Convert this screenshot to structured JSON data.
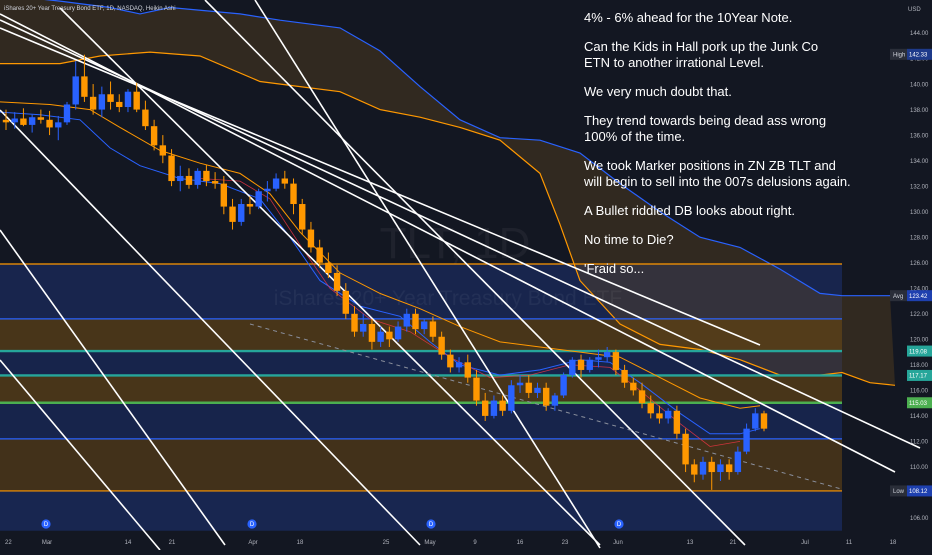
{
  "header": {
    "instrument": "iShares 20+ Year Treasury Bond ETF, 1D, NASDAQ, Heikin Ashi"
  },
  "watermark": {
    "symbol": "TLT, 1D",
    "name": "iShares 20+ Year Treasury Bond ETF"
  },
  "note": {
    "lines": [
      "4% - 6% ahead for the 10Year Note.",
      "Can the Kids in Hall pork up the Junk Co\nETN to another irrational Level.",
      "We very much doubt that.",
      "They trend towards being dead ass wrong\n100% of the time.",
      "We took Marker positions in ZN ZB TLT and\nwill begin to sell into the 007s delusions again.",
      "A Bullet riddled DB looks about right.",
      "No time to Die?",
      "'Fraid so..."
    ]
  },
  "colors": {
    "background": "#131722",
    "bull": "#2962ff",
    "bear": "#ff9800",
    "hline_orange": "#ff9800",
    "hline_teal": "#26a69a",
    "hline_green": "#4caf50",
    "hline_blue": "#2962ff",
    "cloud_top": "#2962ff",
    "cloud_bottom": "#ff9800",
    "trend_lines": "#ffffff",
    "axis_text": "#b2b5be",
    "marker_fill": "#2962ff"
  },
  "chart_data": {
    "type": "candlestick",
    "style": "Heikin Ashi",
    "currency": "USD",
    "ylim": [
      105,
      145.5
    ],
    "y_ticks": [
      106,
      108,
      110,
      112,
      114,
      116,
      118,
      120,
      122,
      124,
      126,
      128,
      130,
      132,
      134,
      136,
      138,
      140,
      142,
      144
    ],
    "x_ticks": [
      "22",
      "Mar",
      "14",
      "21",
      "Apr",
      "18",
      "25",
      "May",
      "9",
      "16",
      "23",
      "Jun",
      "13",
      "21",
      "Jul",
      "11",
      "18"
    ],
    "price_labels": [
      {
        "label": "High",
        "value": "142.33"
      },
      {
        "label": "",
        "value": "119.08"
      },
      {
        "label": "",
        "value": "117.17"
      },
      {
        "label": "",
        "value": "115.03"
      },
      {
        "label": "Avg",
        "value": "123.42"
      },
      {
        "label": "Low",
        "value": "108.12"
      }
    ],
    "horizontal_levels": [
      {
        "value": 125.9,
        "color": "orange"
      },
      {
        "value": 121.6,
        "color": "blue"
      },
      {
        "value": 119.08,
        "color": "teal"
      },
      {
        "value": 117.17,
        "color": "teal"
      },
      {
        "value": 115.03,
        "color": "green"
      },
      {
        "value": 112.2,
        "color": "blue"
      },
      {
        "value": 108.12,
        "color": "orange"
      }
    ],
    "dividend_markers": [
      "D",
      "D",
      "D",
      "D"
    ],
    "candles": [
      {
        "o": 137.2,
        "h": 138.0,
        "l": 136.4,
        "c": 137.0
      },
      {
        "o": 137.0,
        "h": 137.8,
        "l": 136.5,
        "c": 137.3
      },
      {
        "o": 137.3,
        "h": 138.1,
        "l": 136.7,
        "c": 136.8
      },
      {
        "o": 136.8,
        "h": 137.6,
        "l": 136.2,
        "c": 137.4
      },
      {
        "o": 137.4,
        "h": 138.0,
        "l": 136.9,
        "c": 137.2
      },
      {
        "o": 137.2,
        "h": 137.9,
        "l": 136.0,
        "c": 136.6
      },
      {
        "o": 136.6,
        "h": 137.5,
        "l": 135.6,
        "c": 137.0
      },
      {
        "o": 137.0,
        "h": 138.6,
        "l": 136.8,
        "c": 138.4
      },
      {
        "o": 138.4,
        "h": 141.8,
        "l": 138.0,
        "c": 140.6
      },
      {
        "o": 140.6,
        "h": 142.3,
        "l": 138.6,
        "c": 139.0
      },
      {
        "o": 139.0,
        "h": 140.0,
        "l": 137.6,
        "c": 138.0
      },
      {
        "o": 138.0,
        "h": 139.8,
        "l": 137.4,
        "c": 139.2
      },
      {
        "o": 139.2,
        "h": 140.2,
        "l": 138.0,
        "c": 138.6
      },
      {
        "o": 138.6,
        "h": 139.2,
        "l": 137.8,
        "c": 138.2
      },
      {
        "o": 138.2,
        "h": 139.6,
        "l": 137.8,
        "c": 139.4
      },
      {
        "o": 139.4,
        "h": 140.1,
        "l": 137.8,
        "c": 138.0
      },
      {
        "o": 138.0,
        "h": 138.7,
        "l": 136.4,
        "c": 136.7
      },
      {
        "o": 136.7,
        "h": 137.2,
        "l": 134.8,
        "c": 135.2
      },
      {
        "o": 135.2,
        "h": 136.0,
        "l": 133.8,
        "c": 134.4
      },
      {
        "o": 134.4,
        "h": 134.9,
        "l": 132.0,
        "c": 132.4
      },
      {
        "o": 132.4,
        "h": 133.6,
        "l": 131.6,
        "c": 132.8
      },
      {
        "o": 132.8,
        "h": 133.4,
        "l": 131.8,
        "c": 132.1
      },
      {
        "o": 132.1,
        "h": 133.4,
        "l": 131.8,
        "c": 133.2
      },
      {
        "o": 133.2,
        "h": 133.7,
        "l": 132.0,
        "c": 132.4
      },
      {
        "o": 132.4,
        "h": 133.1,
        "l": 131.8,
        "c": 132.2
      },
      {
        "o": 132.2,
        "h": 132.8,
        "l": 129.8,
        "c": 130.4
      },
      {
        "o": 130.4,
        "h": 131.0,
        "l": 128.6,
        "c": 129.2
      },
      {
        "o": 129.2,
        "h": 131.0,
        "l": 128.9,
        "c": 130.6
      },
      {
        "o": 130.6,
        "h": 131.2,
        "l": 129.8,
        "c": 130.4
      },
      {
        "o": 130.4,
        "h": 131.8,
        "l": 130.2,
        "c": 131.6
      },
      {
        "o": 131.6,
        "h": 132.4,
        "l": 130.8,
        "c": 131.8
      },
      {
        "o": 131.8,
        "h": 133.0,
        "l": 131.6,
        "c": 132.6
      },
      {
        "o": 132.6,
        "h": 133.2,
        "l": 131.8,
        "c": 132.2
      },
      {
        "o": 132.2,
        "h": 132.6,
        "l": 129.8,
        "c": 130.6
      },
      {
        "o": 130.6,
        "h": 131.0,
        "l": 128.2,
        "c": 128.6
      },
      {
        "o": 128.6,
        "h": 129.2,
        "l": 126.8,
        "c": 127.2
      },
      {
        "o": 127.2,
        "h": 127.8,
        "l": 125.6,
        "c": 126.0
      },
      {
        "o": 126.0,
        "h": 126.8,
        "l": 124.8,
        "c": 125.2
      },
      {
        "o": 125.2,
        "h": 125.8,
        "l": 123.4,
        "c": 123.8
      },
      {
        "o": 123.8,
        "h": 124.4,
        "l": 121.6,
        "c": 122.0
      },
      {
        "o": 122.0,
        "h": 122.6,
        "l": 120.2,
        "c": 120.6
      },
      {
        "o": 120.6,
        "h": 122.0,
        "l": 120.2,
        "c": 121.2
      },
      {
        "o": 121.2,
        "h": 121.6,
        "l": 119.2,
        "c": 119.8
      },
      {
        "o": 119.8,
        "h": 121.0,
        "l": 119.4,
        "c": 120.6
      },
      {
        "o": 120.6,
        "h": 121.0,
        "l": 119.4,
        "c": 120.0
      },
      {
        "o": 120.0,
        "h": 121.4,
        "l": 119.8,
        "c": 121.0
      },
      {
        "o": 121.0,
        "h": 122.4,
        "l": 120.6,
        "c": 122.0
      },
      {
        "o": 122.0,
        "h": 122.4,
        "l": 120.4,
        "c": 120.8
      },
      {
        "o": 120.8,
        "h": 121.6,
        "l": 120.4,
        "c": 121.4
      },
      {
        "o": 121.4,
        "h": 121.8,
        "l": 119.8,
        "c": 120.2
      },
      {
        "o": 120.2,
        "h": 120.6,
        "l": 118.4,
        "c": 118.8
      },
      {
        "o": 118.8,
        "h": 119.2,
        "l": 117.4,
        "c": 117.8
      },
      {
        "o": 117.8,
        "h": 118.6,
        "l": 117.4,
        "c": 118.2
      },
      {
        "o": 118.2,
        "h": 118.8,
        "l": 116.6,
        "c": 117.0
      },
      {
        "o": 117.0,
        "h": 117.6,
        "l": 114.8,
        "c": 115.2
      },
      {
        "o": 115.2,
        "h": 115.8,
        "l": 113.6,
        "c": 114.0
      },
      {
        "o": 114.0,
        "h": 115.6,
        "l": 113.8,
        "c": 115.2
      },
      {
        "o": 115.2,
        "h": 115.6,
        "l": 114.0,
        "c": 114.4
      },
      {
        "o": 114.4,
        "h": 116.8,
        "l": 114.2,
        "c": 116.4
      },
      {
        "o": 116.4,
        "h": 117.2,
        "l": 115.8,
        "c": 116.6
      },
      {
        "o": 116.6,
        "h": 117.2,
        "l": 115.4,
        "c": 115.8
      },
      {
        "o": 115.8,
        "h": 116.6,
        "l": 115.4,
        "c": 116.2
      },
      {
        "o": 116.2,
        "h": 116.6,
        "l": 114.4,
        "c": 114.8
      },
      {
        "o": 114.8,
        "h": 115.8,
        "l": 114.4,
        "c": 115.6
      },
      {
        "o": 115.6,
        "h": 117.4,
        "l": 115.4,
        "c": 117.2
      },
      {
        "o": 117.2,
        "h": 118.6,
        "l": 117.0,
        "c": 118.4
      },
      {
        "o": 118.4,
        "h": 118.8,
        "l": 117.0,
        "c": 117.6
      },
      {
        "o": 117.6,
        "h": 118.6,
        "l": 117.4,
        "c": 118.4
      },
      {
        "o": 118.4,
        "h": 119.2,
        "l": 117.8,
        "c": 118.6
      },
      {
        "o": 118.6,
        "h": 119.4,
        "l": 118.2,
        "c": 119.0
      },
      {
        "o": 119.0,
        "h": 119.2,
        "l": 117.2,
        "c": 117.6
      },
      {
        "o": 117.6,
        "h": 118.0,
        "l": 116.2,
        "c": 116.6
      },
      {
        "o": 116.6,
        "h": 117.0,
        "l": 115.6,
        "c": 116.0
      },
      {
        "o": 116.0,
        "h": 116.6,
        "l": 114.6,
        "c": 115.0
      },
      {
        "o": 115.0,
        "h": 115.6,
        "l": 113.8,
        "c": 114.2
      },
      {
        "o": 114.2,
        "h": 114.8,
        "l": 113.4,
        "c": 113.8
      },
      {
        "o": 113.8,
        "h": 114.6,
        "l": 113.4,
        "c": 114.4
      },
      {
        "o": 114.4,
        "h": 114.8,
        "l": 112.2,
        "c": 112.6
      },
      {
        "o": 112.6,
        "h": 113.0,
        "l": 109.6,
        "c": 110.2
      },
      {
        "o": 110.2,
        "h": 110.6,
        "l": 108.8,
        "c": 109.4
      },
      {
        "o": 109.4,
        "h": 110.8,
        "l": 109.0,
        "c": 110.4
      },
      {
        "o": 110.4,
        "h": 110.8,
        "l": 108.2,
        "c": 109.6
      },
      {
        "o": 109.6,
        "h": 110.6,
        "l": 108.9,
        "c": 110.2
      },
      {
        "o": 110.2,
        "h": 110.6,
        "l": 109.0,
        "c": 109.6
      },
      {
        "o": 109.6,
        "h": 111.6,
        "l": 109.4,
        "c": 111.2
      },
      {
        "o": 111.2,
        "h": 113.4,
        "l": 111.0,
        "c": 113.0
      },
      {
        "o": 113.0,
        "h": 114.6,
        "l": 112.8,
        "c": 114.2
      },
      {
        "o": 114.2,
        "h": 114.4,
        "l": 112.8,
        "c": 113.0
      }
    ]
  }
}
